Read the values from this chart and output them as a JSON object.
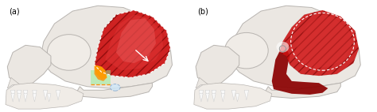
{
  "background_color": "#ffffff",
  "fig_width": 4.74,
  "fig_height": 1.42,
  "dpi": 100,
  "label_a": "(a)",
  "label_b": "(b)",
  "label_fontsize": 7,
  "skull_color": "#ebe7e2",
  "skull_edge_color": "#b8b4b0",
  "skull_linewidth": 0.7,
  "muscle_red_dark": "#8b0000",
  "muscle_red_mid": "#cc1111",
  "muscle_red_bright": "#dd3333",
  "muscle_red_light": "#ee6666",
  "yellow_color": "#ffd700",
  "orange_color": "#ff8c00",
  "green_color": "#90ee90",
  "blue_dashed_color": "#88aacc",
  "orbit_face": "#f0ece7",
  "tooth_color": "#f8f8f8"
}
